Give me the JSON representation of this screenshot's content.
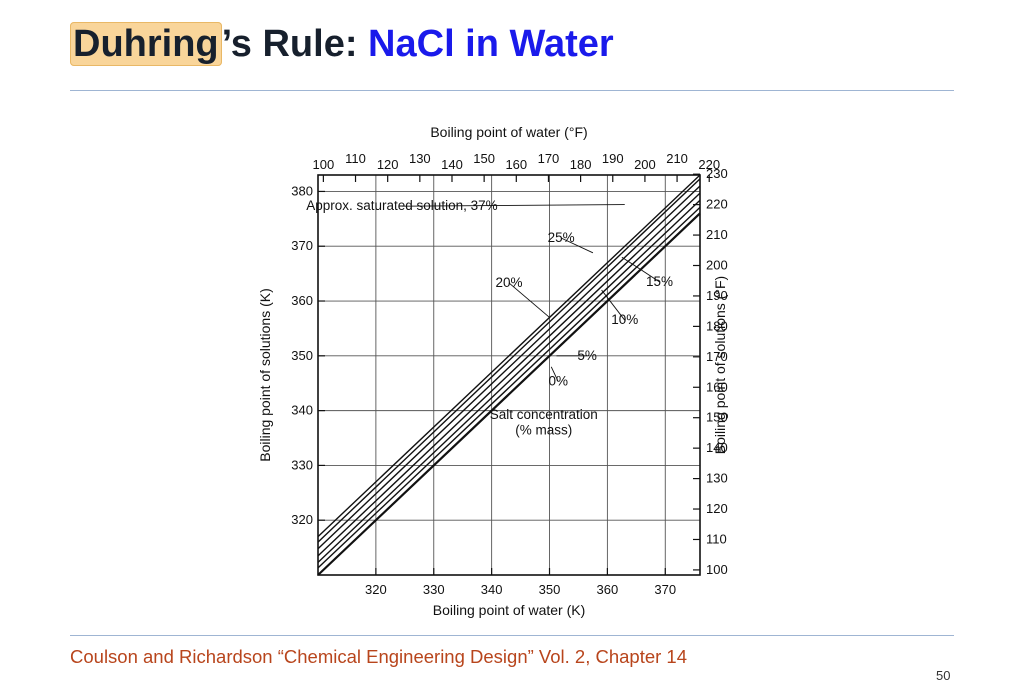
{
  "slide": {
    "title_highlight": "Duhring",
    "title_mid": "’s Rule: ",
    "title_blue": "NaCl in Water",
    "footer": "Coulson and Richardson “Chemical Engineering Design” Vol. 2, Chapter 14",
    "page_number": "50"
  },
  "chart_data": {
    "type": "line",
    "title": "",
    "xlabel": "Boiling point of water (K)",
    "ylabel": "Boiling point of solutions (K)",
    "x2label": "Boiling point of water (°F)",
    "y2label": "Boiling point of solutions (°F)",
    "xlim": [
      310,
      376
    ],
    "ylim": [
      310,
      383
    ],
    "x_ticks": [
      320,
      330,
      340,
      350,
      360,
      370
    ],
    "y_ticks": [
      320,
      330,
      340,
      350,
      360,
      370,
      380
    ],
    "x2_ticks": [
      "100",
      "110",
      "120",
      "130",
      "140",
      "150",
      "160",
      "170",
      "180",
      "190",
      "200",
      "210",
      "220"
    ],
    "y2_ticks": [
      "100",
      "110",
      "120",
      "130",
      "140",
      "150",
      "160",
      "170",
      "180",
      "190",
      "200",
      "210",
      "220",
      "230"
    ],
    "grid": true,
    "series": [
      {
        "name": "0%",
        "x": [
          310,
          376
        ],
        "y": [
          310.0,
          376.0
        ]
      },
      {
        "name": "5%",
        "x": [
          310,
          376
        ],
        "y": [
          311.3,
          377.1
        ]
      },
      {
        "name": "10%",
        "x": [
          310,
          376
        ],
        "y": [
          312.3,
          378.4
        ]
      },
      {
        "name": "15%",
        "x": [
          310,
          376
        ],
        "y": [
          313.5,
          379.7
        ]
      },
      {
        "name": "20%",
        "x": [
          310,
          376
        ],
        "y": [
          314.8,
          381.0
        ]
      },
      {
        "name": "25%",
        "x": [
          310,
          376
        ],
        "y": [
          316.0,
          382.3
        ]
      },
      {
        "name": "Approx. saturated solution, 37%",
        "x": [
          310,
          376
        ],
        "y": [
          317.0,
          383.0
        ]
      }
    ],
    "annotations": [
      {
        "text": "Approx. saturated solution, 37%",
        "x": 324.5,
        "y": 377.3,
        "lx": 363.0,
        "ly": 377.6
      },
      {
        "text": "25%",
        "x": 352.0,
        "y": 371.5,
        "lx": 357.5,
        "ly": 368.8
      },
      {
        "text": "20%",
        "x": 343.0,
        "y": 363.3,
        "lx": 350.0,
        "ly": 357.0
      },
      {
        "text": "15%",
        "x": 369.0,
        "y": 363.5,
        "lx": 362.5,
        "ly": 368.0
      },
      {
        "text": "10%",
        "x": 363.0,
        "y": 356.5,
        "lx": 359.0,
        "ly": 362.0
      },
      {
        "text": "5%",
        "x": 356.5,
        "y": 350.0,
        "lx": 351.2,
        "ly": 350.0
      },
      {
        "text": "0%",
        "x": 351.5,
        "y": 345.3,
        "lx": 350.3,
        "ly": 348.0
      },
      {
        "text": "Salt concentration",
        "x": 349.0,
        "y": 339.2
      },
      {
        "text": "(% mass)",
        "x": 349.0,
        "y": 336.4
      }
    ]
  }
}
